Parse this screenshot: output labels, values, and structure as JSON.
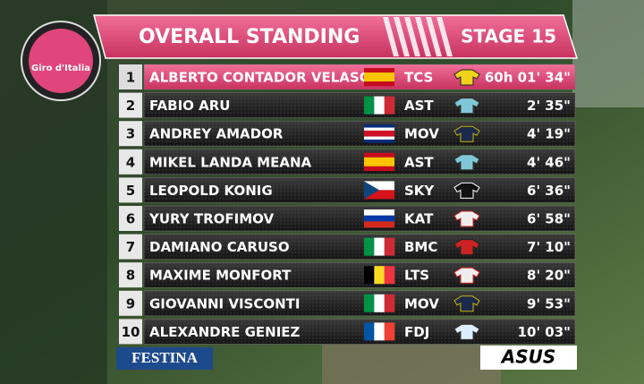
{
  "logo": "Giro d'Italia",
  "title": "OVERALL STANDING",
  "stage": "STAGE 15",
  "rows": [
    {
      "rank": 1,
      "name": "ALBERTO CONTADOR VELASCO",
      "team": "TCS",
      "time": "60h 01' 34\""
    },
    {
      "rank": 2,
      "name": "FABIO ARU",
      "team": "AST",
      "time": "2' 35\""
    },
    {
      "rank": 3,
      "name": "ANDREY AMADOR",
      "team": "MOV",
      "time": "4' 19\""
    },
    {
      "rank": 4,
      "name": "MIKEL LANDA MEANA",
      "team": "AST",
      "time": "4' 46\""
    },
    {
      "rank": 5,
      "name": "LEOPOLD KONIG",
      "team": "SKY",
      "time": "6' 36\""
    },
    {
      "rank": 6,
      "name": "YURY TROFIMOV",
      "team": "KAT",
      "time": "6' 58\""
    },
    {
      "rank": 7,
      "name": "DAMIANO CARUSO",
      "team": "BMC",
      "time": "7' 10\""
    },
    {
      "rank": 8,
      "name": "MAXIME MONFORT",
      "team": "LTS",
      "time": "8' 20\""
    },
    {
      "rank": 9,
      "name": "GIOVANNI VISCONTI",
      "team": "MOV",
      "time": "9' 53\""
    },
    {
      "rank": 10,
      "name": "ALEXANDRE GENIEZ",
      "team": "FDJ",
      "time": "10' 03\""
    }
  ],
  "sponsors": {
    "left": "FESTINA",
    "right": "ASUS"
  }
}
